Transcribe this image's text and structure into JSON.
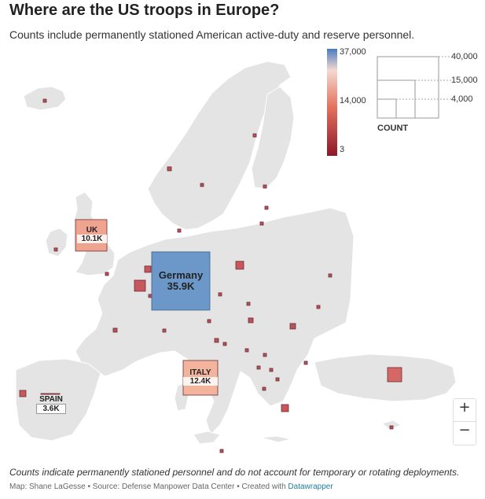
{
  "title": "Where are the US troops in Europe?",
  "subtitle": "Counts include permanently stationed American active-duty and reserve personnel.",
  "color_legend": {
    "ticks": [
      "37,000",
      "14,000",
      "3"
    ],
    "stops": [
      "#8b1a2b",
      "#e3705d",
      "#f3d9d0",
      "#4b7bbd"
    ]
  },
  "size_legend": {
    "title": "COUNT",
    "values": [
      "40,000",
      "15,000",
      "4,000"
    ]
  },
  "labels": {
    "uk": {
      "name": "UK",
      "value": "10.1K"
    },
    "germany": {
      "name": "Germany",
      "value": "35.9K"
    },
    "italy": {
      "name": "ITALY",
      "value": "12.4K"
    },
    "spain": {
      "name": "SPAIN",
      "value": "3.6K"
    }
  },
  "zoom": {
    "in": "+",
    "out": "−"
  },
  "footnote": "Counts indicate permanently stationed personnel and do not account for temporary or rotating deployments.",
  "credit": {
    "text": "Map: Shane LaGesse • Source: Defense Manpower Data Center • Created with",
    "link": "Datawrapper"
  },
  "colors": {
    "land": "#e4e4e4",
    "border": "#ffffff",
    "small_marker": "#b5545e",
    "germany": "#6c98c9",
    "uk": "#efa48f",
    "italy": "#f2b49d",
    "turkey": "#d46864",
    "poland": "#c6575c"
  }
}
